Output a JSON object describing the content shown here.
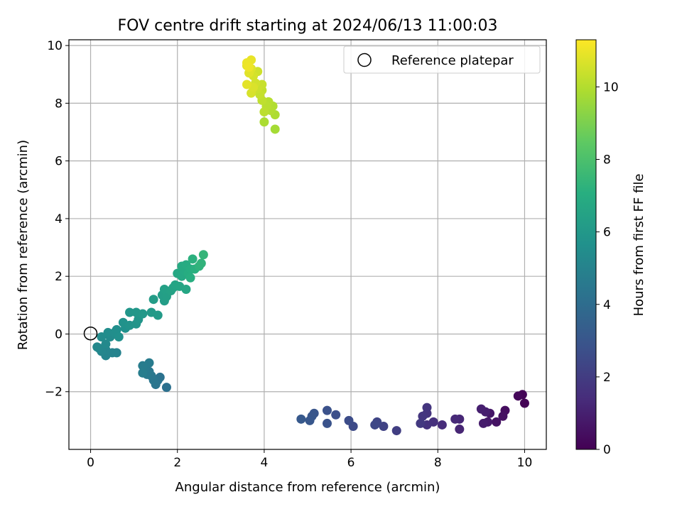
{
  "chart_data": {
    "type": "scatter",
    "title": "FOV centre drift starting at 2024/06/13 11:00:03",
    "xlabel": "Angular distance from reference (arcmin)",
    "ylabel": "Rotation from reference (arcmin)",
    "xlim": [
      -0.5,
      10.5
    ],
    "ylim": [
      -4.0,
      10.2
    ],
    "xticks": [
      0,
      2,
      4,
      6,
      8,
      10
    ],
    "yticks": [
      -2,
      0,
      2,
      4,
      6,
      8,
      10
    ],
    "grid": true,
    "legend": {
      "position": "top-right",
      "entries": [
        "Reference platepar"
      ]
    },
    "reference_point": {
      "x": 0,
      "y": 0,
      "label": "Reference platepar"
    },
    "colorbar": {
      "label": "Hours from first FF file",
      "range": [
        0,
        11.3
      ],
      "ticks": [
        0,
        2,
        4,
        6,
        8,
        10
      ],
      "colormap": "viridis"
    },
    "points": [
      {
        "x": 10.0,
        "y": -2.4,
        "t": 0.05
      },
      {
        "x": 9.95,
        "y": -2.1,
        "t": 0.1
      },
      {
        "x": 9.85,
        "y": -2.15,
        "t": 0.2
      },
      {
        "x": 9.55,
        "y": -2.65,
        "t": 0.4
      },
      {
        "x": 9.5,
        "y": -2.85,
        "t": 0.5
      },
      {
        "x": 9.35,
        "y": -3.05,
        "t": 0.6
      },
      {
        "x": 9.2,
        "y": -2.75,
        "t": 0.7
      },
      {
        "x": 9.15,
        "y": -3.05,
        "t": 0.8
      },
      {
        "x": 9.05,
        "y": -3.1,
        "t": 0.9
      },
      {
        "x": 9.1,
        "y": -2.7,
        "t": 0.95
      },
      {
        "x": 9.0,
        "y": -2.6,
        "t": 1.0
      },
      {
        "x": 8.5,
        "y": -3.3,
        "t": 1.2
      },
      {
        "x": 8.5,
        "y": -2.95,
        "t": 1.25
      },
      {
        "x": 8.4,
        "y": -2.95,
        "t": 1.35
      },
      {
        "x": 8.1,
        "y": -3.15,
        "t": 1.45
      },
      {
        "x": 7.9,
        "y": -3.05,
        "t": 1.55
      },
      {
        "x": 7.75,
        "y": -3.15,
        "t": 1.65
      },
      {
        "x": 7.75,
        "y": -2.75,
        "t": 1.7
      },
      {
        "x": 7.75,
        "y": -2.55,
        "t": 1.75
      },
      {
        "x": 7.65,
        "y": -2.85,
        "t": 1.8
      },
      {
        "x": 7.6,
        "y": -3.1,
        "t": 1.9
      },
      {
        "x": 7.05,
        "y": -3.35,
        "t": 2.1
      },
      {
        "x": 6.75,
        "y": -3.2,
        "t": 2.25
      },
      {
        "x": 6.6,
        "y": -3.05,
        "t": 2.35
      },
      {
        "x": 6.55,
        "y": -3.15,
        "t": 2.45
      },
      {
        "x": 6.05,
        "y": -3.2,
        "t": 2.55
      },
      {
        "x": 5.95,
        "y": -3.0,
        "t": 2.65
      },
      {
        "x": 5.65,
        "y": -2.8,
        "t": 2.75
      },
      {
        "x": 5.45,
        "y": -2.65,
        "t": 2.85
      },
      {
        "x": 5.45,
        "y": -3.1,
        "t": 2.9
      },
      {
        "x": 5.15,
        "y": -2.75,
        "t": 3.0
      },
      {
        "x": 5.1,
        "y": -2.85,
        "t": 3.05
      },
      {
        "x": 5.05,
        "y": -3.0,
        "t": 3.1
      },
      {
        "x": 4.85,
        "y": -2.95,
        "t": 3.2
      },
      {
        "x": 1.75,
        "y": -1.85,
        "t": 4.2
      },
      {
        "x": 1.6,
        "y": -1.5,
        "t": 4.3
      },
      {
        "x": 1.55,
        "y": -1.6,
        "t": 4.35
      },
      {
        "x": 1.5,
        "y": -1.75,
        "t": 4.4
      },
      {
        "x": 1.45,
        "y": -1.6,
        "t": 4.45
      },
      {
        "x": 1.4,
        "y": -1.45,
        "t": 4.5
      },
      {
        "x": 1.35,
        "y": -1.3,
        "t": 4.55
      },
      {
        "x": 1.3,
        "y": -1.4,
        "t": 4.6
      },
      {
        "x": 1.25,
        "y": -1.25,
        "t": 4.65
      },
      {
        "x": 1.35,
        "y": -1.0,
        "t": 4.7
      },
      {
        "x": 1.2,
        "y": -1.1,
        "t": 4.75
      },
      {
        "x": 1.2,
        "y": -1.35,
        "t": 4.8
      },
      {
        "x": 0.6,
        "y": -0.65,
        "t": 5.0
      },
      {
        "x": 0.5,
        "y": -0.65,
        "t": 5.05
      },
      {
        "x": 0.35,
        "y": -0.75,
        "t": 5.1
      },
      {
        "x": 0.35,
        "y": -0.55,
        "t": 5.15
      },
      {
        "x": 0.25,
        "y": -0.6,
        "t": 5.2
      },
      {
        "x": 0.2,
        "y": -0.5,
        "t": 5.25
      },
      {
        "x": 0.15,
        "y": -0.45,
        "t": 5.3
      },
      {
        "x": 0.35,
        "y": -0.35,
        "t": 5.35
      },
      {
        "x": 0.45,
        "y": -0.1,
        "t": 5.4
      },
      {
        "x": 0.25,
        "y": -0.1,
        "t": 5.45
      },
      {
        "x": 0.4,
        "y": 0.05,
        "t": 5.5
      },
      {
        "x": 0.55,
        "y": 0.05,
        "t": 5.55
      },
      {
        "x": 0.6,
        "y": 0.15,
        "t": 5.6
      },
      {
        "x": 0.65,
        "y": -0.1,
        "t": 5.65
      },
      {
        "x": 0.8,
        "y": 0.2,
        "t": 5.7
      },
      {
        "x": 0.75,
        "y": 0.4,
        "t": 5.75
      },
      {
        "x": 0.9,
        "y": 0.3,
        "t": 5.8
      },
      {
        "x": 1.05,
        "y": 0.35,
        "t": 5.85
      },
      {
        "x": 1.1,
        "y": 0.5,
        "t": 5.9
      },
      {
        "x": 0.9,
        "y": 0.75,
        "t": 5.95
      },
      {
        "x": 1.05,
        "y": 0.75,
        "t": 6.0
      },
      {
        "x": 1.2,
        "y": 0.7,
        "t": 6.05
      },
      {
        "x": 1.4,
        "y": 0.75,
        "t": 6.1
      },
      {
        "x": 1.55,
        "y": 0.65,
        "t": 6.15
      },
      {
        "x": 1.45,
        "y": 1.2,
        "t": 6.25
      },
      {
        "x": 1.7,
        "y": 1.15,
        "t": 6.3
      },
      {
        "x": 1.65,
        "y": 1.35,
        "t": 6.35
      },
      {
        "x": 1.75,
        "y": 1.3,
        "t": 6.4
      },
      {
        "x": 1.7,
        "y": 1.55,
        "t": 6.45
      },
      {
        "x": 1.85,
        "y": 1.5,
        "t": 6.5
      },
      {
        "x": 1.9,
        "y": 1.6,
        "t": 6.55
      },
      {
        "x": 1.95,
        "y": 1.7,
        "t": 6.6
      },
      {
        "x": 2.05,
        "y": 1.65,
        "t": 6.65
      },
      {
        "x": 2.2,
        "y": 1.55,
        "t": 6.7
      },
      {
        "x": 2.0,
        "y": 2.1,
        "t": 6.75
      },
      {
        "x": 2.1,
        "y": 2.0,
        "t": 6.8
      },
      {
        "x": 2.15,
        "y": 2.2,
        "t": 6.85
      },
      {
        "x": 2.1,
        "y": 2.35,
        "t": 6.9
      },
      {
        "x": 2.2,
        "y": 2.4,
        "t": 6.95
      },
      {
        "x": 2.25,
        "y": 2.1,
        "t": 7.0
      },
      {
        "x": 2.3,
        "y": 2.25,
        "t": 7.05
      },
      {
        "x": 2.3,
        "y": 1.95,
        "t": 7.1
      },
      {
        "x": 2.4,
        "y": 2.25,
        "t": 7.15
      },
      {
        "x": 2.35,
        "y": 2.6,
        "t": 7.2
      },
      {
        "x": 2.5,
        "y": 2.35,
        "t": 7.3
      },
      {
        "x": 2.55,
        "y": 2.45,
        "t": 7.35
      },
      {
        "x": 2.6,
        "y": 2.75,
        "t": 7.45
      },
      {
        "x": 4.25,
        "y": 7.1,
        "t": 9.8
      },
      {
        "x": 4.0,
        "y": 7.35,
        "t": 9.9
      },
      {
        "x": 4.25,
        "y": 7.6,
        "t": 9.95
      },
      {
        "x": 4.2,
        "y": 7.9,
        "t": 10.0
      },
      {
        "x": 4.15,
        "y": 7.75,
        "t": 10.05
      },
      {
        "x": 4.1,
        "y": 8.05,
        "t": 10.1
      },
      {
        "x": 4.05,
        "y": 7.9,
        "t": 10.15
      },
      {
        "x": 4.0,
        "y": 7.7,
        "t": 10.2
      },
      {
        "x": 3.95,
        "y": 8.1,
        "t": 10.25
      },
      {
        "x": 3.95,
        "y": 8.45,
        "t": 10.3
      },
      {
        "x": 3.9,
        "y": 8.3,
        "t": 10.35
      },
      {
        "x": 3.95,
        "y": 8.65,
        "t": 10.4
      },
      {
        "x": 3.85,
        "y": 8.5,
        "t": 10.45
      },
      {
        "x": 3.85,
        "y": 9.1,
        "t": 10.5
      },
      {
        "x": 3.8,
        "y": 8.7,
        "t": 10.55
      },
      {
        "x": 3.75,
        "y": 8.95,
        "t": 10.6
      },
      {
        "x": 3.7,
        "y": 8.35,
        "t": 10.65
      },
      {
        "x": 3.75,
        "y": 8.55,
        "t": 10.7
      },
      {
        "x": 3.7,
        "y": 9.2,
        "t": 10.75
      },
      {
        "x": 3.65,
        "y": 9.05,
        "t": 10.8
      },
      {
        "x": 3.6,
        "y": 8.65,
        "t": 10.85
      },
      {
        "x": 3.6,
        "y": 9.3,
        "t": 10.9
      },
      {
        "x": 3.7,
        "y": 9.5,
        "t": 10.95
      },
      {
        "x": 3.6,
        "y": 9.4,
        "t": 11.0
      },
      {
        "x": 3.65,
        "y": 9.25,
        "t": 11.05
      }
    ]
  }
}
